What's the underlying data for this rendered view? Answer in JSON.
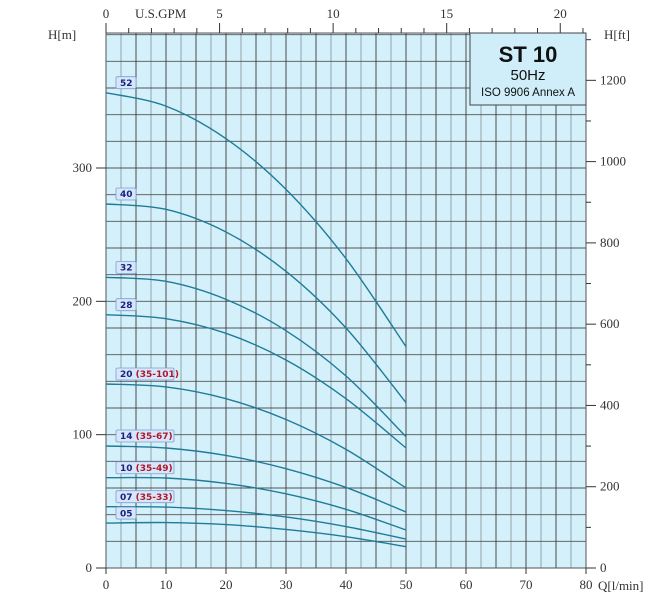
{
  "chart_data": {
    "type": "line",
    "legend_box": {
      "title": "ST 10",
      "frequency": "50Hz",
      "standard": "ISO 9906 Annex A",
      "placement": "top-right"
    },
    "xlabel": "Q[l/min]",
    "ylabel": "H[m]",
    "y2label": "H[ft]",
    "x2label": "U.S.GPM",
    "xlim": [
      0,
      80
    ],
    "ylim": [
      0,
      400
    ],
    "y2lim_ft": [
      0,
      1312
    ],
    "x2lim_gpm": [
      0,
      21.1
    ],
    "xticks": [
      0,
      10,
      20,
      30,
      40,
      50,
      60,
      70,
      80
    ],
    "yticks": [
      0,
      100,
      200,
      300
    ],
    "y2ticks": [
      0,
      200,
      400,
      600,
      800,
      1000,
      1200
    ],
    "x2ticks": [
      0,
      5,
      10,
      15,
      20
    ],
    "grid": true,
    "colors": {
      "plot_bg": "#d4f0fb",
      "grid": "#3a3a3a",
      "curve": "#1f7c98",
      "label_text": "#1a237e",
      "label_range": "#b0182a"
    },
    "x": [
      0,
      10,
      20,
      30,
      40,
      50
    ],
    "series": [
      {
        "name": "52",
        "range": "",
        "values": [
          356.5,
          346.4,
          322,
          284,
          232,
          166
        ]
      },
      {
        "name": "40",
        "range": "",
        "values": [
          273,
          269,
          252,
          222.5,
          180,
          124
        ]
      },
      {
        "name": "32",
        "range": "",
        "values": [
          218,
          215,
          201.5,
          178,
          144,
          98.5
        ]
      },
      {
        "name": "28",
        "range": "",
        "values": [
          190,
          187,
          176,
          156,
          127,
          90
        ]
      },
      {
        "name": "20",
        "range": "(35-101)",
        "values": [
          138,
          135.8,
          127,
          111.4,
          89,
          60
        ]
      },
      {
        "name": "14",
        "range": "(35-67)",
        "values": [
          91.5,
          90,
          84.4,
          74.5,
          60.4,
          42
        ]
      },
      {
        "name": "10",
        "range": "(35-49)",
        "values": [
          67.7,
          67.5,
          63.4,
          55.6,
          44,
          28.5
        ]
      },
      {
        "name": "07",
        "range": "(35-33)",
        "values": [
          46,
          45.7,
          43.1,
          38.3,
          31.1,
          21.7
        ]
      },
      {
        "name": "05",
        "range": "",
        "values": [
          33.7,
          34.1,
          32.6,
          28.9,
          23.5,
          16
        ]
      }
    ]
  }
}
